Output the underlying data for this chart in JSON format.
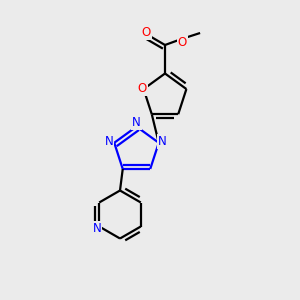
{
  "bg_color": "#ebebeb",
  "bond_color": "#000000",
  "atom_colors": {
    "O": "#ff0000",
    "N": "#0000ff",
    "C": "#000000"
  },
  "line_width": 1.6,
  "font_size_atom": 8.5,
  "font_size_methyl": 8.0
}
